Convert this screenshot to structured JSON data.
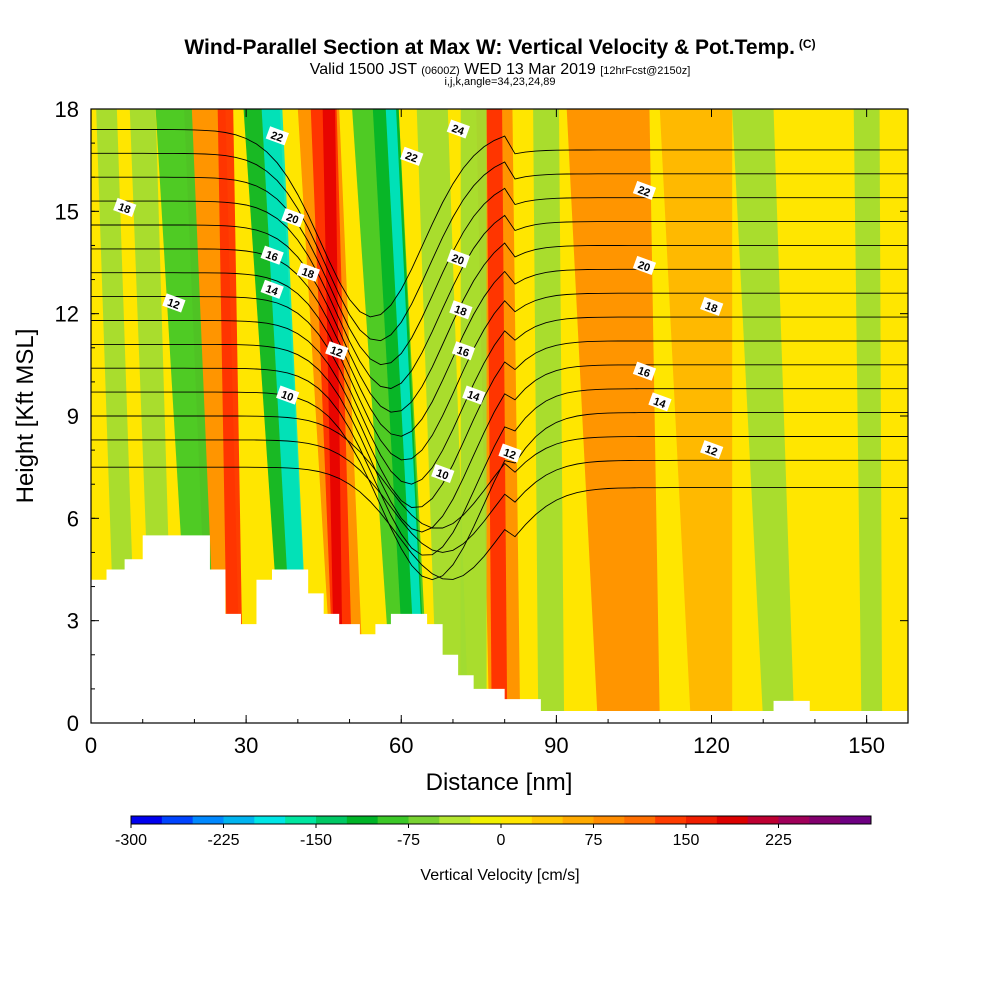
{
  "title": "Wind-Parallel Section at Max W: Vertical Velocity & Pot.Temp.",
  "title_unit": "(C)",
  "subtitle_main_a": "Valid 1500 JST",
  "subtitle_small_a": "(0600Z)",
  "subtitle_main_b": "WED 13 Mar 2019",
  "subtitle_small_b": "[12hrFcst@2150z]",
  "subtitle2": "i,j,k,angle=34,23,24,89",
  "colorbar_label": "Vertical Velocity [cm/s]",
  "colorbar_ticks": [
    "-300",
    "-225",
    "-150",
    "-75",
    "0",
    "75",
    "150",
    "225"
  ],
  "colorbar_colors": [
    "#0000ee",
    "#0044ff",
    "#0088ff",
    "#00b4f0",
    "#00e6e6",
    "#00e6a0",
    "#00c864",
    "#00b428",
    "#3cc828",
    "#78d232",
    "#b4e632",
    "#f0f000",
    "#ffe600",
    "#ffc800",
    "#ffaa00",
    "#ff8c00",
    "#ff6e00",
    "#ff3c00",
    "#f01e00",
    "#dc0000",
    "#be0032",
    "#a0005a",
    "#82006e",
    "#6e0082"
  ],
  "chart_data": {
    "type": "heatmap",
    "title": "Wind-Parallel Section at Max W: Vertical Velocity & Pot.Temp.",
    "xlabel": "Distance [nm]",
    "ylabel": "Height [Kft MSL]",
    "xlim": [
      0,
      158
    ],
    "ylim": [
      0,
      18
    ],
    "x_ticks": [
      "0",
      "30",
      "60",
      "90",
      "120",
      "150"
    ],
    "y_ticks": [
      "0",
      "3",
      "6",
      "9",
      "12",
      "15",
      "18"
    ],
    "fill_variable": "Vertical Velocity [cm/s]",
    "fill_range": [
      -300,
      262
    ],
    "contour_variable": "Pot.Temp. (C)",
    "contour_labels": [
      {
        "text": "22",
        "x": 36,
        "y": 17.2
      },
      {
        "text": "24",
        "x": 71,
        "y": 17.4
      },
      {
        "text": "22",
        "x": 62,
        "y": 16.6
      },
      {
        "text": "22",
        "x": 107,
        "y": 15.6
      },
      {
        "text": "18",
        "x": 6.5,
        "y": 15.1
      },
      {
        "text": "20",
        "x": 39,
        "y": 14.8
      },
      {
        "text": "20",
        "x": 71,
        "y": 13.6
      },
      {
        "text": "20",
        "x": 107,
        "y": 13.4
      },
      {
        "text": "16",
        "x": 35,
        "y": 13.7
      },
      {
        "text": "18",
        "x": 42,
        "y": 13.2
      },
      {
        "text": "14",
        "x": 35,
        "y": 12.7
      },
      {
        "text": "12",
        "x": 16,
        "y": 12.3
      },
      {
        "text": "18",
        "x": 71.5,
        "y": 12.1
      },
      {
        "text": "18",
        "x": 120,
        "y": 12.2
      },
      {
        "text": "12",
        "x": 47.5,
        "y": 10.9
      },
      {
        "text": "16",
        "x": 72,
        "y": 10.9
      },
      {
        "text": "16",
        "x": 107,
        "y": 10.3
      },
      {
        "text": "10",
        "x": 38,
        "y": 9.6
      },
      {
        "text": "14",
        "x": 74,
        "y": 9.6
      },
      {
        "text": "14",
        "x": 110,
        "y": 9.4
      },
      {
        "text": "12",
        "x": 81,
        "y": 7.9
      },
      {
        "text": "12",
        "x": 120,
        "y": 8
      },
      {
        "text": "10",
        "x": 68,
        "y": 7.3
      }
    ],
    "terrain_height_kft": [
      [
        0,
        4.2
      ],
      [
        3,
        4.5
      ],
      [
        6.5,
        4.8
      ],
      [
        10,
        5.5
      ],
      [
        23,
        4.5
      ],
      [
        26,
        3.2
      ],
      [
        29,
        2.9
      ],
      [
        32,
        4.2
      ],
      [
        35,
        4.5
      ],
      [
        42,
        3.8
      ],
      [
        45,
        3.2
      ],
      [
        48,
        2.9
      ],
      [
        52,
        2.6
      ],
      [
        55,
        2.9
      ],
      [
        58,
        3.2
      ],
      [
        65,
        2.9
      ],
      [
        68,
        2.0
      ],
      [
        71,
        1.4
      ],
      [
        74,
        1.0
      ],
      [
        80,
        0.7
      ],
      [
        87,
        0.35
      ],
      [
        132,
        0.65
      ],
      [
        139,
        0.35
      ],
      [
        158,
        0.35
      ]
    ],
    "grid": false
  }
}
